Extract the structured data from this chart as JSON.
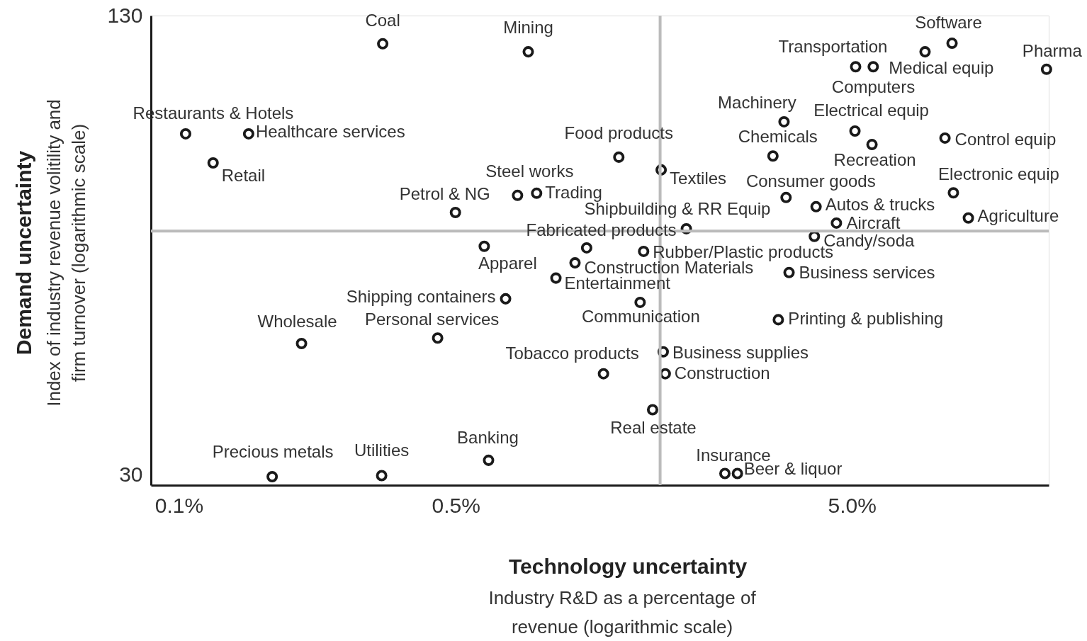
{
  "chart_data": {
    "type": "scatter",
    "xlabel": "Technology uncertainty",
    "ylabel": "Demand uncertainty",
    "log": "xy",
    "marker": "circle",
    "xlim": [
      0.085,
      15.7
    ],
    "ylim": [
      29,
      130
    ],
    "xticks": [
      {
        "value": 0.1,
        "label": "0.1%"
      },
      {
        "value": 0.5,
        "label": "0.5%"
      },
      {
        "value": 5,
        "label": "5.0%"
      }
    ],
    "yticks": [
      30,
      130
    ],
    "ref_lines": [
      {
        "axis": "x",
        "value": 1.64,
        "color": "#bbbbbb"
      },
      {
        "axis": "y",
        "value": 65.3,
        "color": "#bbbbbb"
      }
    ],
    "series": [
      {
        "color": "#1a1a1a",
        "x": [
          0.327,
          0.762,
          0.104,
          0.15,
          0.122,
          1.29,
          1.65,
          0.716,
          0.8,
          0.499,
          1.91,
          1.07,
          0.59,
          1.49,
          1.0,
          0.895,
          0.668,
          1.46,
          0.204,
          0.45,
          1.67,
          1.18,
          1.69,
          1.57,
          0.172,
          0.325,
          0.605,
          2.39,
          2.57,
          3.26,
          3.47,
          4.02,
          4.57,
          4.06,
          3.41,
          3.16,
          3.37,
          5.09,
          5.62,
          5.11,
          5.66,
          7.65,
          8.95,
          15.5,
          8.59,
          9.02,
          9.84
        ],
        "values": [
          118.8,
          115.8,
          89.1,
          89.1,
          81.2,
          82.7,
          79.4,
          73.2,
          73.7,
          69.3,
          65.8,
          61.9,
          62.2,
          61.2,
          59.0,
          56.2,
          52.6,
          52.0,
          45.6,
          46.4,
          44.4,
          41.4,
          41.4,
          36.9,
          29.8,
          29.9,
          31.4,
          30.1,
          30.1,
          49.2,
          57.2,
          64.2,
          67.0,
          70.6,
          72.7,
          83.0,
          92.6,
          89.9,
          86.1,
          110.4,
          110.4,
          115.8,
          119.0,
          109.5,
          87.9,
          73.8,
          68.1
        ]
      }
    ],
    "annotations": [
      {
        "text": "Coal",
        "x": 0.327,
        "y": 118.8
      },
      {
        "text": "Mining",
        "x": 0.762,
        "y": 115.8
      },
      {
        "text": "Restaurants & Hotels",
        "x": 0.104,
        "y": 89.1
      },
      {
        "text": "Healthcare services",
        "x": 0.15,
        "y": 89.1
      },
      {
        "text": "Retail",
        "x": 0.122,
        "y": 81.2
      },
      {
        "text": "Food products",
        "x": 1.29,
        "y": 82.7
      },
      {
        "text": "Textiles",
        "x": 1.65,
        "y": 79.4
      },
      {
        "text": "Steel works",
        "x": 0.716,
        "y": 73.2
      },
      {
        "text": "Trading",
        "x": 0.8,
        "y": 73.7
      },
      {
        "text": "Petrol & NG",
        "x": 0.499,
        "y": 69.3
      },
      {
        "text": "Fabricated products",
        "x": 1.91,
        "y": 65.8
      },
      {
        "text": "Shipbuilding & RR Equip",
        "x": 1.07,
        "y": 61.9
      },
      {
        "text": "Apparel",
        "x": 0.59,
        "y": 62.2
      },
      {
        "text": "Rubber/Plastic products",
        "x": 1.49,
        "y": 61.2
      },
      {
        "text": "Construction Materials",
        "x": 1.0,
        "y": 59.0
      },
      {
        "text": "Entertainment",
        "x": 0.895,
        "y": 56.2
      },
      {
        "text": "Shipping containers",
        "x": 0.668,
        "y": 52.6
      },
      {
        "text": "Communication",
        "x": 1.46,
        "y": 52.0
      },
      {
        "text": "Wholesale",
        "x": 0.204,
        "y": 45.6
      },
      {
        "text": "Personal services",
        "x": 0.45,
        "y": 46.4
      },
      {
        "text": "Business supplies",
        "x": 1.67,
        "y": 44.4
      },
      {
        "text": "Tobacco products",
        "x": 1.18,
        "y": 41.4
      },
      {
        "text": "Construction",
        "x": 1.69,
        "y": 41.4
      },
      {
        "text": "Real estate",
        "x": 1.57,
        "y": 36.9
      },
      {
        "text": "Precious metals",
        "x": 0.172,
        "y": 29.8
      },
      {
        "text": "Utilities",
        "x": 0.325,
        "y": 29.9
      },
      {
        "text": "Banking",
        "x": 0.605,
        "y": 31.4
      },
      {
        "text": "Insurance",
        "x": 2.39,
        "y": 30.1
      },
      {
        "text": "Beer & liquor",
        "x": 2.57,
        "y": 30.1
      },
      {
        "text": "Printing & publishing",
        "x": 3.26,
        "y": 49.2
      },
      {
        "text": "Business services",
        "x": 3.47,
        "y": 57.2
      },
      {
        "text": "Candy/soda",
        "x": 4.02,
        "y": 64.2
      },
      {
        "text": "Aircraft",
        "x": 4.57,
        "y": 67.0
      },
      {
        "text": "Autos & trucks",
        "x": 4.06,
        "y": 70.6
      },
      {
        "text": "Consumer goods",
        "x": 3.41,
        "y": 72.7
      },
      {
        "text": "Chemicals",
        "x": 3.16,
        "y": 83.0
      },
      {
        "text": "Machinery",
        "x": 3.37,
        "y": 92.6
      },
      {
        "text": "Electrical equip",
        "x": 5.09,
        "y": 89.9
      },
      {
        "text": "Recreation",
        "x": 5.62,
        "y": 86.1
      },
      {
        "text": "Computers",
        "x": 5.11,
        "y": 110.4
      },
      {
        "text": "Medical equip",
        "x": 5.66,
        "y": 110.4
      },
      {
        "text": "Transportation",
        "x": 7.65,
        "y": 115.8
      },
      {
        "text": "Software",
        "x": 8.95,
        "y": 119.0
      },
      {
        "text": "Pharma",
        "x": 15.5,
        "y": 109.5
      },
      {
        "text": "Control equip",
        "x": 8.59,
        "y": 87.9
      },
      {
        "text": "Electronic equip",
        "x": 9.02,
        "y": 73.8
      },
      {
        "text": "Agriculture",
        "x": 9.84,
        "y": 68.1
      },
      "Index of industry revenue volitility and firm turnover (logarithmic scale)",
      "Industry R&D as a percentage of revenue (logarithmic scale)"
    ]
  }
}
